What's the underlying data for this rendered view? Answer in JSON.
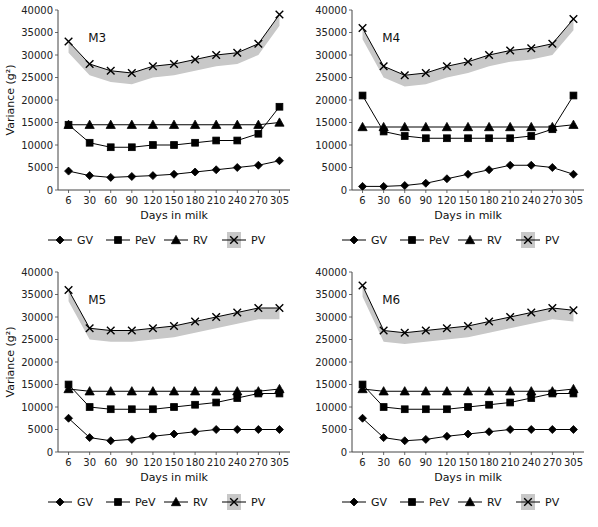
{
  "chart_data": [
    {
      "type": "line",
      "annotation": "M3",
      "xlabel": "Days in milk",
      "ylabel": "Variance (g²)",
      "categories": [
        6,
        30,
        60,
        90,
        120,
        150,
        180,
        210,
        240,
        270,
        305
      ],
      "ylim": [
        0,
        40000
      ],
      "yticks": [
        0,
        5000,
        10000,
        15000,
        20000,
        25000,
        30000,
        35000,
        40000
      ],
      "grid": false,
      "legend": "bottom",
      "series": [
        {
          "name": "GV",
          "color": "#000000",
          "marker": "diamond",
          "values": [
            4200,
            3200,
            2800,
            3000,
            3200,
            3500,
            4000,
            4500,
            5000,
            5500,
            6500
          ]
        },
        {
          "name": "PeV",
          "color": "#000000",
          "marker": "square",
          "values": [
            14500,
            10500,
            9500,
            9500,
            10000,
            10000,
            10500,
            11000,
            11000,
            12500,
            18500
          ]
        },
        {
          "name": "RV",
          "color": "#000000",
          "marker": "triangle",
          "values": [
            14500,
            14500,
            14500,
            14500,
            14500,
            14500,
            14500,
            14500,
            14500,
            14500,
            15000
          ]
        },
        {
          "name": "PV",
          "color": "#000000",
          "marker": "x",
          "values": [
            33000,
            28000,
            26500,
            26000,
            27500,
            28000,
            29000,
            30000,
            30500,
            32500,
            39000
          ],
          "band_lower": [
            30500,
            25500,
            24000,
            23500,
            25000,
            25500,
            26500,
            27500,
            28000,
            30000,
            36500
          ]
        }
      ]
    },
    {
      "type": "line",
      "annotation": "M4",
      "xlabel": "Days in milk",
      "categories": [
        6,
        30,
        60,
        90,
        120,
        150,
        180,
        210,
        240,
        270,
        305
      ],
      "ylim": [
        0,
        40000
      ],
      "yticks": [
        0,
        5000,
        10000,
        15000,
        20000,
        25000,
        30000,
        35000,
        40000
      ],
      "grid": false,
      "legend": "bottom",
      "series": [
        {
          "name": "GV",
          "color": "#000000",
          "marker": "diamond",
          "values": [
            800,
            800,
            1000,
            1500,
            2500,
            3500,
            4500,
            5500,
            5500,
            5000,
            3500
          ]
        },
        {
          "name": "PeV",
          "color": "#000000",
          "marker": "square",
          "values": [
            21000,
            13000,
            12000,
            11500,
            11500,
            11500,
            11500,
            11500,
            12000,
            13500,
            21000
          ]
        },
        {
          "name": "RV",
          "color": "#000000",
          "marker": "triangle",
          "values": [
            14000,
            14000,
            14000,
            14000,
            14000,
            14000,
            14000,
            14000,
            14000,
            14000,
            14500
          ]
        },
        {
          "name": "PV",
          "color": "#000000",
          "marker": "x",
          "values": [
            36000,
            27500,
            25500,
            26000,
            27500,
            28500,
            30000,
            31000,
            31500,
            32500,
            38000
          ],
          "band_lower": [
            33500,
            25000,
            23000,
            23500,
            25000,
            26000,
            27500,
            28500,
            29000,
            30000,
            35500
          ]
        }
      ]
    },
    {
      "type": "line",
      "annotation": "M5",
      "xlabel": "Days in milk",
      "ylabel": "Variance (g²)",
      "categories": [
        6,
        30,
        60,
        90,
        120,
        150,
        180,
        210,
        240,
        270,
        305
      ],
      "ylim": [
        0,
        40000
      ],
      "yticks": [
        0,
        5000,
        10000,
        15000,
        20000,
        25000,
        30000,
        35000,
        40000
      ],
      "grid": false,
      "legend": "bottom",
      "series": [
        {
          "name": "GV",
          "color": "#000000",
          "marker": "diamond",
          "values": [
            7500,
            3200,
            2500,
            2800,
            3500,
            4000,
            4500,
            5000,
            5000,
            5000,
            5000
          ]
        },
        {
          "name": "PeV",
          "color": "#000000",
          "marker": "square",
          "values": [
            15000,
            10000,
            9500,
            9500,
            9500,
            10000,
            10500,
            11000,
            12000,
            13000,
            13000
          ]
        },
        {
          "name": "RV",
          "color": "#000000",
          "marker": "triangle",
          "values": [
            14000,
            13500,
            13500,
            13500,
            13500,
            13500,
            13500,
            13500,
            13500,
            13500,
            14000
          ]
        },
        {
          "name": "PV",
          "color": "#000000",
          "marker": "x",
          "values": [
            36000,
            27500,
            27000,
            27000,
            27500,
            28000,
            29000,
            30000,
            31000,
            32000,
            32000
          ],
          "band_lower": [
            33500,
            25000,
            24500,
            24500,
            25000,
            25500,
            26500,
            27500,
            28500,
            29500,
            29500
          ]
        }
      ]
    },
    {
      "type": "line",
      "annotation": "M6",
      "xlabel": "Days in milk",
      "categories": [
        6,
        30,
        60,
        90,
        120,
        150,
        180,
        210,
        240,
        270,
        305
      ],
      "ylim": [
        0,
        40000
      ],
      "yticks": [
        0,
        5000,
        10000,
        15000,
        20000,
        25000,
        30000,
        35000,
        40000
      ],
      "grid": false,
      "legend": "bottom",
      "series": [
        {
          "name": "GV",
          "color": "#000000",
          "marker": "diamond",
          "values": [
            7500,
            3200,
            2500,
            2800,
            3500,
            4000,
            4500,
            5000,
            5000,
            5000,
            5000
          ]
        },
        {
          "name": "PeV",
          "color": "#000000",
          "marker": "square",
          "values": [
            15000,
            10000,
            9500,
            9500,
            9500,
            10000,
            10500,
            11000,
            12000,
            13000,
            13000
          ]
        },
        {
          "name": "RV",
          "color": "#000000",
          "marker": "triangle",
          "values": [
            14000,
            13500,
            13500,
            13500,
            13500,
            13500,
            13500,
            13500,
            13500,
            13500,
            14000
          ]
        },
        {
          "name": "PV",
          "color": "#000000",
          "marker": "x",
          "values": [
            37000,
            27000,
            26500,
            27000,
            27500,
            28000,
            29000,
            30000,
            31000,
            32000,
            31500
          ],
          "band_lower": [
            34500,
            24500,
            24000,
            24500,
            25000,
            25500,
            26500,
            27500,
            28500,
            29500,
            29000
          ]
        }
      ]
    }
  ]
}
